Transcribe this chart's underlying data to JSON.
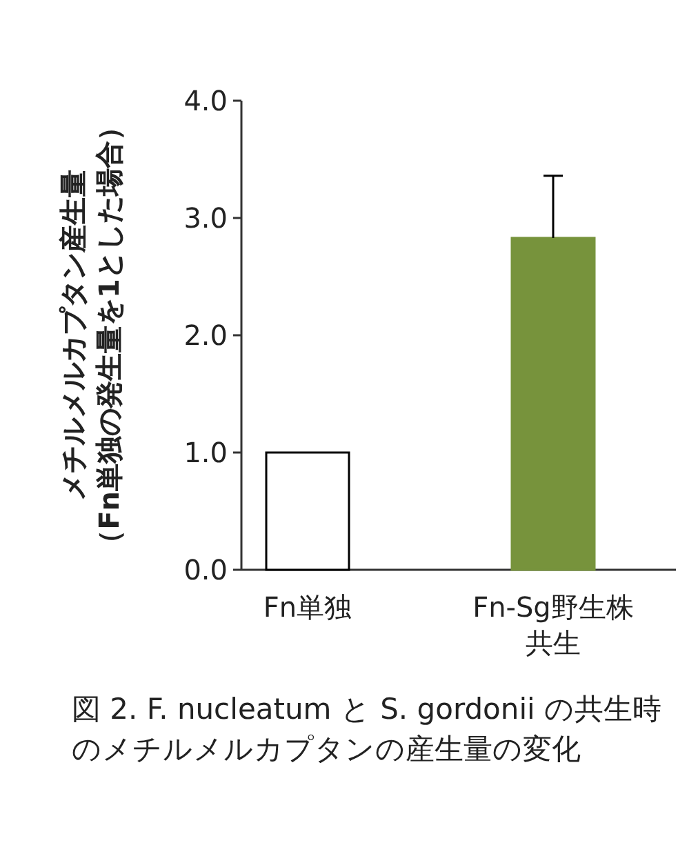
{
  "chart_data": {
    "type": "bar",
    "categories": [
      "Fn単独",
      "Fn-Sg野生株共生"
    ],
    "values": [
      1.0,
      2.83
    ],
    "colors": [
      "#ffffff",
      "#77933c"
    ],
    "errors": [
      null,
      [
        2.83,
        3.36
      ]
    ],
    "ylabel": "メチルメルカプタン産生量（Fn単独の発生量を1とした場合）",
    "ylim": [
      0,
      4
    ],
    "yticks": [
      {
        "value": 0,
        "label": "0.0"
      },
      {
        "value": 1,
        "label": "1.0"
      },
      {
        "value": 2,
        "label": "2.0"
      },
      {
        "value": 3,
        "label": "3.0"
      },
      {
        "value": 4,
        "label": "4.0"
      }
    ],
    "grid": false,
    "annotations": [
      "図 2. F. nucleatum と S. gordonii の共生時のメチルメルカプタンの産生量の変化"
    ]
  }
}
